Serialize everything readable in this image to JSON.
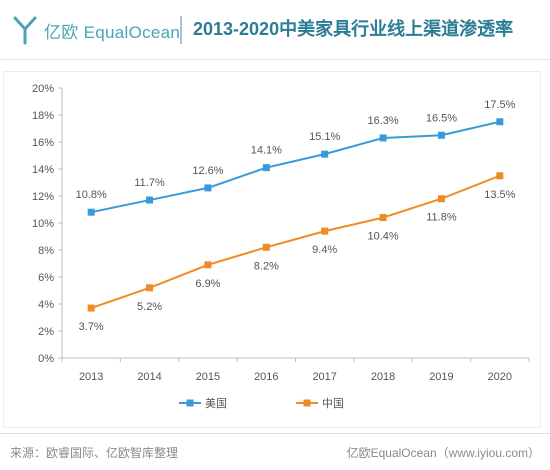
{
  "header": {
    "logo_text": "亿欧 EqualOcean",
    "title": "2013-2020中美家具行业线上渠道渗透率"
  },
  "footer": {
    "source": "来源：欧睿国际、亿欧智库整理",
    "brand": "亿欧EqualOcean（www.iyiou.com）"
  },
  "colors": {
    "brand": "#2a7d94",
    "usa": "#3a9ad9",
    "china": "#f08a24",
    "axis": "#bfbfbf"
  },
  "chart_data": {
    "type": "line",
    "categories": [
      "2013",
      "2014",
      "2015",
      "2016",
      "2017",
      "2018",
      "2019",
      "2020"
    ],
    "y_ticks": [
      "0%",
      "2%",
      "4%",
      "6%",
      "8%",
      "10%",
      "12%",
      "14%",
      "16%",
      "18%",
      "20%"
    ],
    "ylim": [
      0,
      20
    ],
    "unit": "%",
    "grid": false,
    "legend_position": "bottom-center",
    "series": [
      {
        "name": "美国",
        "values": [
          10.8,
          11.7,
          12.6,
          14.1,
          15.1,
          16.3,
          16.5,
          17.5
        ],
        "labels": [
          "10.8%",
          "11.7%",
          "12.6%",
          "14.1%",
          "15.1%",
          "16.3%",
          "16.5%",
          "17.5%"
        ],
        "color": "#3a9ad9",
        "label_position": "above"
      },
      {
        "name": "中国",
        "values": [
          3.7,
          5.2,
          6.9,
          8.2,
          9.4,
          10.4,
          11.8,
          13.5
        ],
        "labels": [
          "3.7%",
          "5.2%",
          "6.9%",
          "8.2%",
          "9.4%",
          "10.4%",
          "11.8%",
          "13.5%"
        ],
        "color": "#f08a24",
        "label_position": "below"
      }
    ]
  }
}
